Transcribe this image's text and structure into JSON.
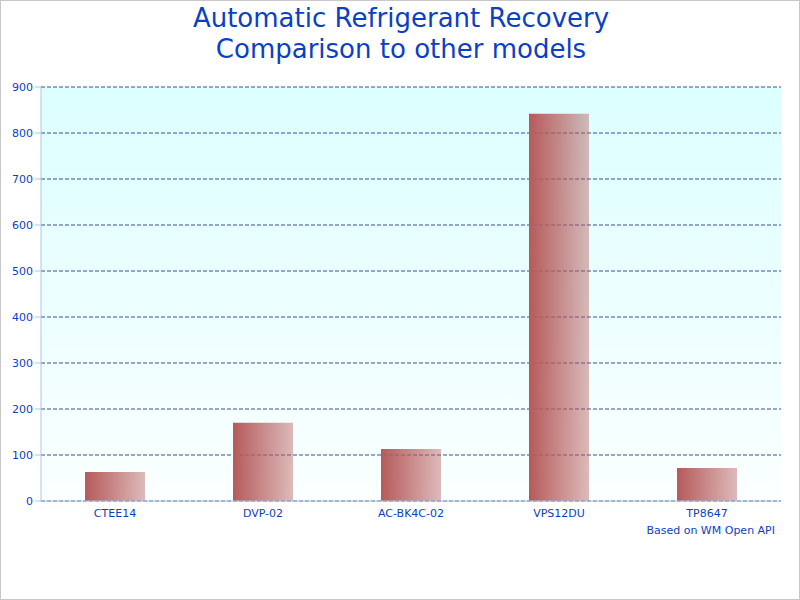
{
  "chart_data": {
    "type": "bar",
    "title": "Automatic Refrigerant Recovery\nComparison to other models",
    "annotation": "Based on WM Open API",
    "categories": [
      "CTEE14",
      "DVP-02",
      "AC-BK4C-02",
      "VPS12DU",
      "TP8647"
    ],
    "values": [
      63,
      170,
      113,
      842,
      72
    ],
    "color": "#b65a5a",
    "ylim": [
      0,
      900
    ],
    "yticks": [
      0,
      100,
      200,
      300,
      400,
      500,
      600,
      700,
      800,
      900
    ],
    "grid": true
  }
}
